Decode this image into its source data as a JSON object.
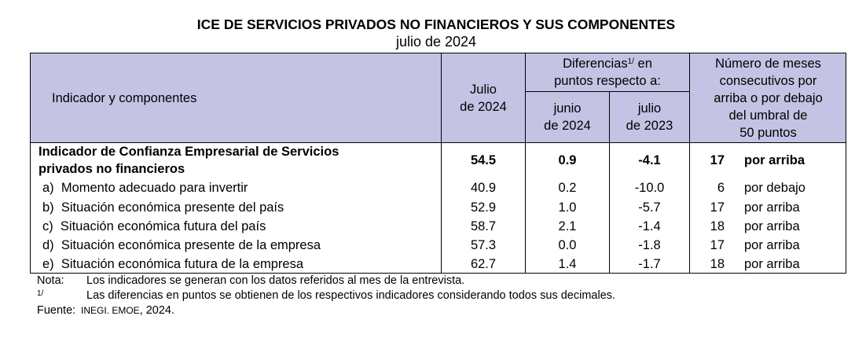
{
  "title": "ICE DE SERVICIOS PRIVADOS NO FINANCIEROS Y SUS COMPONENTES",
  "subtitle": "julio de 2024",
  "header": {
    "indicator": "Indicador y componentes",
    "month_line1": "Julio",
    "month_line2": "de 2024",
    "diff_line1_pre": "Diferencias",
    "diff_sup": "1/",
    "diff_line1_post": " en",
    "diff_line2": "puntos respecto a:",
    "junio_line1": "junio",
    "junio_line2": "de 2024",
    "julio_line1": "julio",
    "julio_line2": "de 2023",
    "months_lines": [
      "Número de meses",
      "consecutivos por",
      "arriba o por debajo",
      "del umbral de",
      "50 puntos"
    ]
  },
  "rows": [
    {
      "label_line1": "Indicador de Confianza Empresarial de Servicios",
      "label_line2": "privados no financieros",
      "value": "54.5",
      "diff_prev": "0.9",
      "diff_year": "-4.1",
      "months": "17",
      "status": "por arriba"
    },
    {
      "label": "a)  Momento adecuado para invertir",
      "value": "40.9",
      "diff_prev": "0.2",
      "diff_year": "-10.0",
      "months": "6",
      "status": "por debajo"
    },
    {
      "label": "b)  Situación económica presente del país",
      "value": "52.9",
      "diff_prev": "1.0",
      "diff_year": "-5.7",
      "months": "17",
      "status": "por arriba"
    },
    {
      "label": "c)  Situación económica futura del país",
      "value": "58.7",
      "diff_prev": "2.1",
      "diff_year": "-1.4",
      "months": "18",
      "status": "por arriba"
    },
    {
      "label": "d)  Situación económica presente de la empresa",
      "value": "57.3",
      "diff_prev": "0.0",
      "diff_year": "-1.8",
      "months": "17",
      "status": "por arriba"
    },
    {
      "label": "e)  Situación económica futura de la empresa",
      "value": "62.7",
      "diff_prev": "1.4",
      "diff_year": "-1.7",
      "months": "18",
      "status": "por arriba"
    }
  ],
  "notes": {
    "nota_label": "Nota:",
    "nota_text": "Los indicadores se generan con los datos referidos al mes de la entrevista.",
    "sup_label": "1/",
    "sup_text": "Las diferencias en puntos se obtienen de los respectivos indicadores considerando todos sus decimales.",
    "fuente_label": "Fuente:",
    "fuente_source": "INEGI. EMOE",
    "fuente_year": ", 2024."
  }
}
